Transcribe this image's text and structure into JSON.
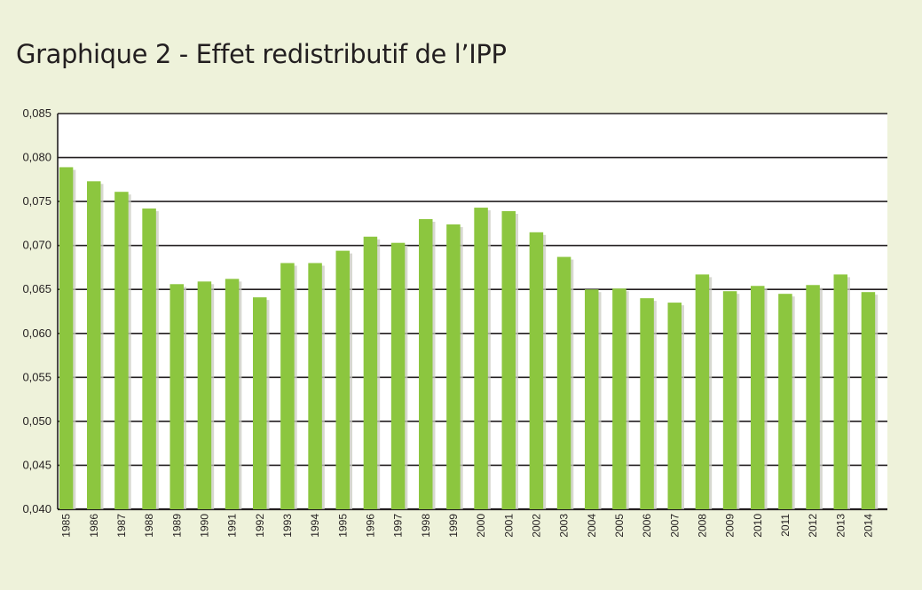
{
  "chart_data": {
    "type": "bar",
    "title": "Graphique 2 - Effet redistributif de l’IPP",
    "xlabel": "",
    "ylabel": "",
    "ylim": [
      0.04,
      0.085
    ],
    "ytick_labels": [
      "0,040",
      "0,045",
      "0,050",
      "0,055",
      "0,060",
      "0,065",
      "0,070",
      "0,075",
      "0,080",
      "0,085"
    ],
    "grid": true,
    "legend": "none",
    "categories": [
      "1985",
      "1986",
      "1987",
      "1988",
      "1989",
      "1990",
      "1991",
      "1992",
      "1993",
      "1994",
      "1995",
      "1996",
      "1997",
      "1998",
      "1999",
      "2000",
      "2001",
      "2002",
      "2003",
      "2004",
      "2005",
      "2006",
      "2007",
      "2008",
      "2009",
      "2010",
      "2011",
      "2012",
      "2013",
      "2014"
    ],
    "values": [
      0.0789,
      0.0773,
      0.0761,
      0.0742,
      0.0656,
      0.0659,
      0.0662,
      0.0641,
      0.068,
      0.068,
      0.0694,
      0.071,
      0.0703,
      0.073,
      0.0724,
      0.0743,
      0.0739,
      0.0715,
      0.0687,
      0.065,
      0.0651,
      0.064,
      0.0635,
      0.0667,
      0.0648,
      0.0654,
      0.0645,
      0.0655,
      0.0667,
      0.0647
    ],
    "colors": {
      "bar": "#8cc63f",
      "bar_shadow": "#c9cbc0",
      "plot_background": "#ffffff",
      "page_background": "#eef2da",
      "gridline": "#231f20"
    }
  }
}
